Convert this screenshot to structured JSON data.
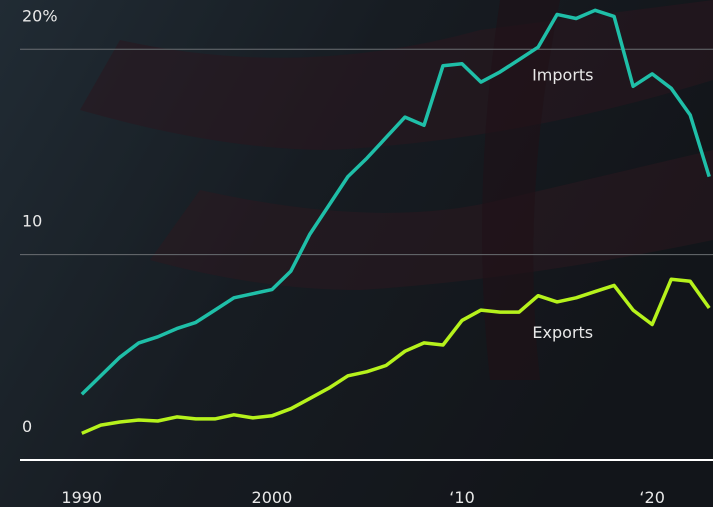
{
  "chart_data": {
    "type": "line",
    "x": [
      1990,
      1991,
      1992,
      1993,
      1994,
      1995,
      1996,
      1997,
      1998,
      1999,
      2000,
      2001,
      2002,
      2003,
      2004,
      2005,
      2006,
      2007,
      2008,
      2009,
      2010,
      2011,
      2012,
      2013,
      2014,
      2015,
      2016,
      2017,
      2018,
      2019,
      2020,
      2021,
      2022,
      2023
    ],
    "series": [
      {
        "name": "Imports",
        "color": "#1fbfa8",
        "values": [
          3.2,
          4.1,
          5.0,
          5.7,
          6.0,
          6.4,
          6.7,
          7.3,
          7.9,
          8.1,
          8.3,
          9.2,
          11.0,
          12.4,
          13.8,
          14.7,
          15.7,
          16.7,
          16.3,
          19.2,
          19.3,
          18.4,
          18.9,
          19.5,
          20.1,
          21.7,
          21.5,
          21.9,
          21.6,
          18.2,
          18.8,
          18.1,
          16.8,
          13.8
        ]
      },
      {
        "name": "Exports",
        "color": "#b6f21c",
        "values": [
          1.3,
          1.7,
          1.85,
          1.95,
          1.9,
          2.1,
          2.0,
          2.0,
          2.2,
          2.05,
          2.15,
          2.5,
          3.0,
          3.5,
          4.1,
          4.3,
          4.6,
          5.3,
          5.7,
          5.6,
          6.8,
          7.3,
          7.2,
          7.2,
          8.0,
          7.7,
          7.9,
          8.2,
          8.5,
          7.3,
          6.6,
          8.8,
          8.7,
          7.4
        ]
      }
    ],
    "xlim": [
      1985.7,
      2023.2
    ],
    "xticks": [
      1990,
      2000,
      {
        "value": 2010,
        "label": "‘10"
      },
      {
        "value": 2020,
        "label": "‘20"
      }
    ],
    "ylim": [
      0,
      22.4
    ],
    "yticks": [
      0,
      10,
      {
        "value": 20,
        "label": "20%"
      }
    ],
    "grid": true
  }
}
